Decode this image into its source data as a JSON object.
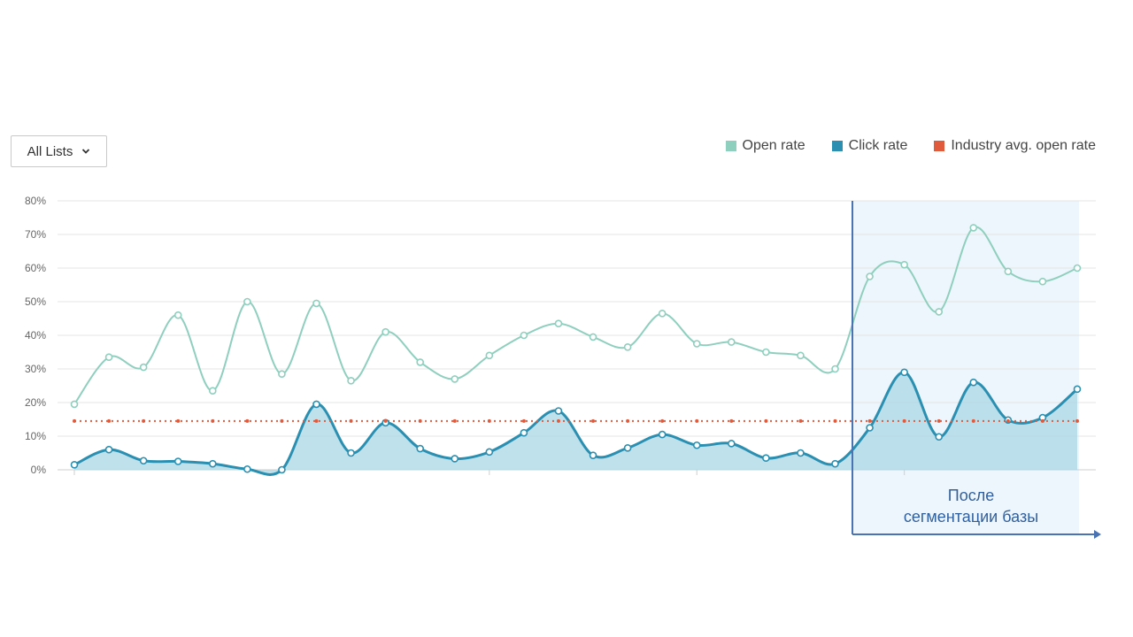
{
  "filter": {
    "label": "All Lists",
    "icon": "chevron-down-icon"
  },
  "legend": [
    {
      "label": "Open rate",
      "color": "#8fcfbd"
    },
    {
      "label": "Click rate",
      "color": "#2a8fb0"
    },
    {
      "label": "Industry avg. open rate",
      "color": "#e05a3c"
    }
  ],
  "annotation": {
    "line1": "После",
    "line2": "сегментации базы"
  },
  "chart_data": {
    "type": "line",
    "ylim": [
      0,
      80
    ],
    "y_ticks": [
      "0%",
      "10%",
      "20%",
      "30%",
      "40%",
      "50%",
      "60%",
      "70%",
      "80%"
    ],
    "grid": true,
    "legend_position": "top-right",
    "highlight_from_index": 23,
    "series": [
      {
        "name": "Open rate",
        "color": "#8fcfbd",
        "values": [
          19.5,
          33.5,
          30.5,
          46,
          23.5,
          50,
          28.5,
          49.5,
          26.5,
          41,
          32,
          27,
          34,
          40,
          43.5,
          39.5,
          36.5,
          46.5,
          37.5,
          38,
          35,
          34,
          30,
          57.5,
          61,
          47,
          72,
          59,
          56,
          60
        ]
      },
      {
        "name": "Click rate",
        "color": "#2a8fb0",
        "values": [
          1.5,
          6,
          2.7,
          2.5,
          1.8,
          0.2,
          0,
          19.5,
          5,
          14,
          6.3,
          3.3,
          5.3,
          11,
          17.5,
          4.3,
          6.5,
          10.5,
          7.3,
          7.8,
          3.5,
          5,
          1.8,
          12.5,
          29,
          9.8,
          26,
          14.8,
          15.5,
          24
        ]
      },
      {
        "name": "Industry avg. open rate",
        "color": "#e05a3c",
        "values": [
          14.5,
          14.5,
          14.5,
          14.5,
          14.5,
          14.5,
          14.5,
          14.5,
          14.5,
          14.5,
          14.5,
          14.5,
          14.5,
          14.5,
          14.5,
          14.5,
          14.5,
          14.5,
          14.5,
          14.5,
          14.5,
          14.5,
          14.5,
          14.5,
          14.5,
          14.5,
          14.5,
          14.5,
          14.5,
          14.5
        ]
      }
    ]
  }
}
